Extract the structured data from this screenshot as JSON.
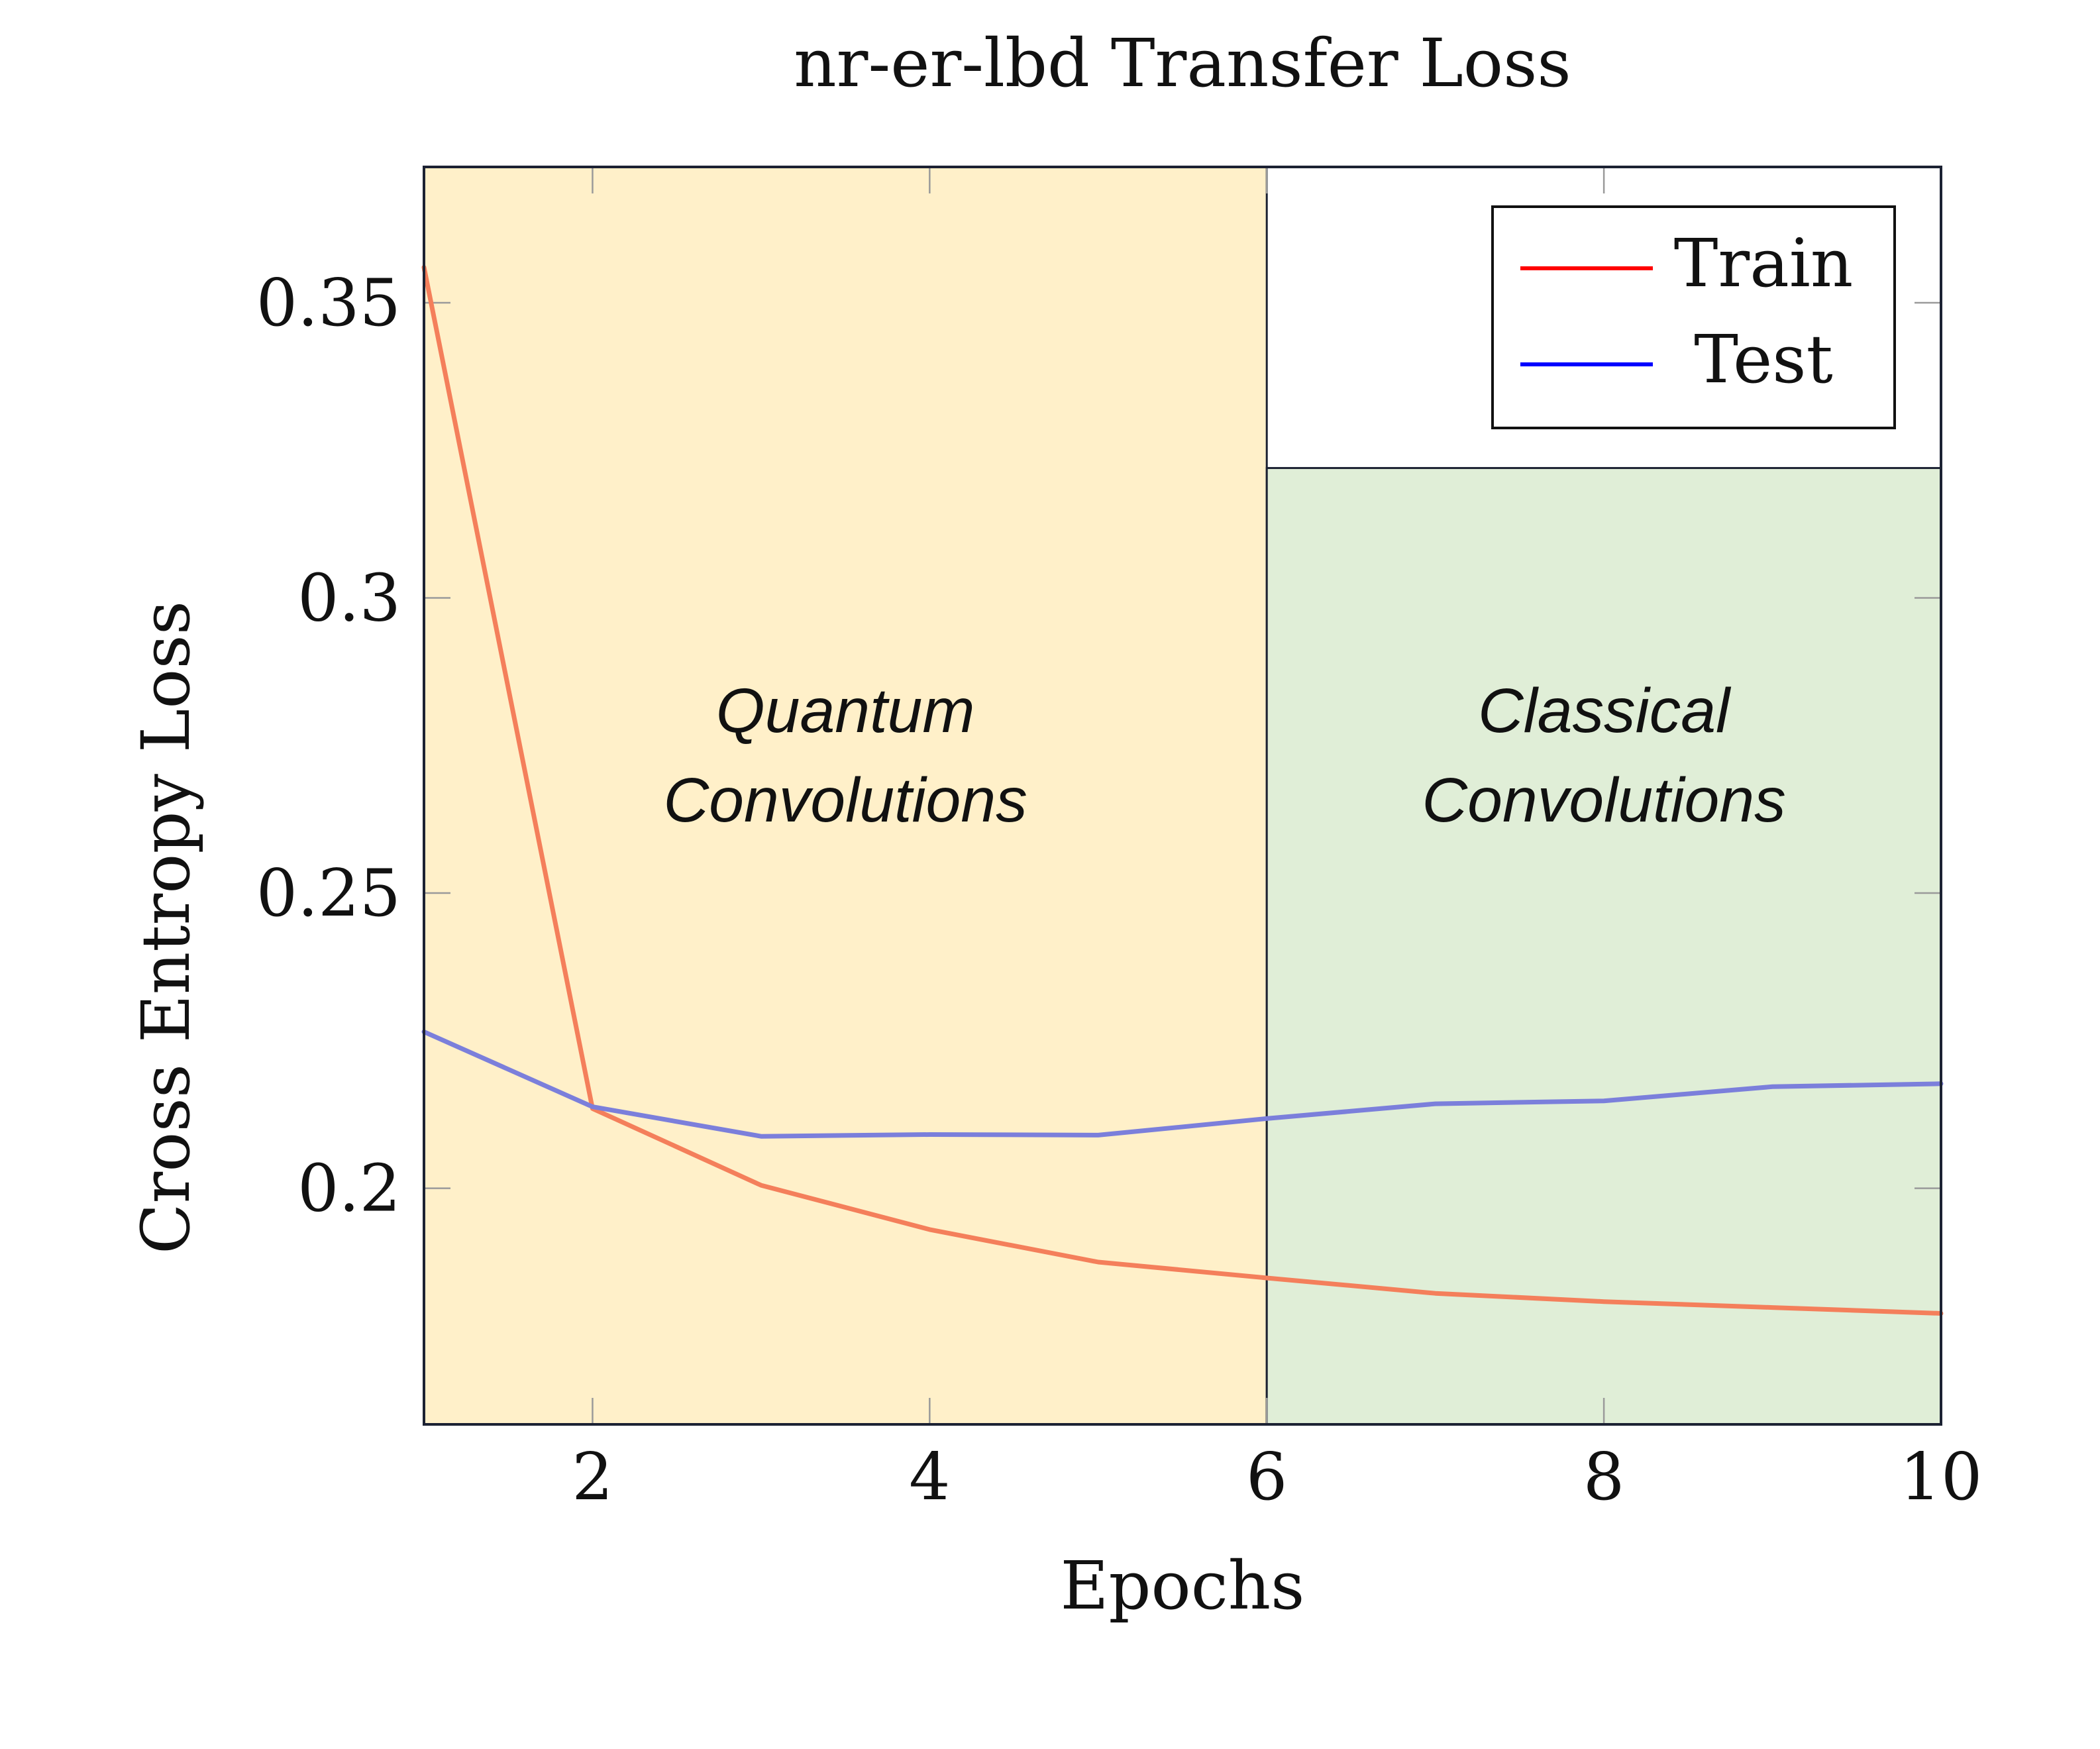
{
  "chart_data": {
    "type": "line",
    "title": "nr-er-lbd Transfer Loss",
    "xlabel": "Epochs",
    "ylabel": "Cross Entropy Loss",
    "xlim": [
      1,
      10
    ],
    "ylim": [
      0.16,
      0.373
    ],
    "x_ticks": [
      2,
      4,
      6,
      8,
      10
    ],
    "x_tick_labels": [
      "2",
      "4",
      "6",
      "8",
      "10"
    ],
    "y_ticks": [
      0.2,
      0.25,
      0.3,
      0.35
    ],
    "y_tick_labels": [
      "0.2",
      "0.25",
      "0.3",
      "0.35"
    ],
    "grid": false,
    "legend_position": "top-right",
    "x": [
      1,
      2,
      3,
      4,
      5,
      6,
      7,
      8,
      9,
      10
    ],
    "series": [
      {
        "name": "Train",
        "color": "#ff0000",
        "line_color": "#f47f5b",
        "values": [
          0.356,
          0.2135,
          0.2005,
          0.193,
          0.1875,
          0.1848,
          0.1822,
          0.1808,
          0.1798,
          0.1788
        ]
      },
      {
        "name": "Test",
        "color": "#0000ff",
        "line_color": "#7b7fdb",
        "values": [
          0.2265,
          0.2138,
          0.2088,
          0.2091,
          0.209,
          0.2118,
          0.2143,
          0.2148,
          0.2172,
          0.2177
        ]
      }
    ],
    "regions": [
      {
        "label_lines": [
          "Quantum",
          "Convolutions"
        ],
        "x_start": 1,
        "x_end": 6,
        "y_top": 0.373,
        "color": "#fff0c9"
      },
      {
        "label_lines": [
          "Classical",
          "Convolutions"
        ],
        "x_start": 6,
        "x_end": 10,
        "y_top": 0.322,
        "color": "#e0eed7"
      }
    ]
  }
}
